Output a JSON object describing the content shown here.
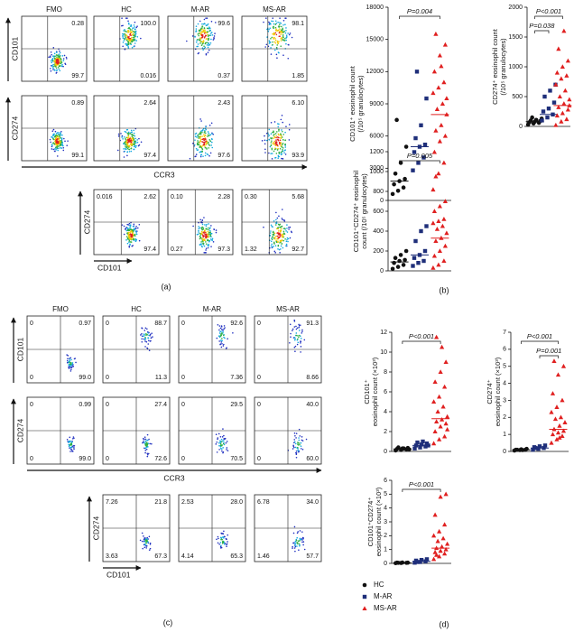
{
  "panel_a": {
    "label": "(a)",
    "columns": [
      "FMO",
      "HC",
      "M-AR",
      "MS-AR"
    ],
    "rows": [
      {
        "y_label": "CD101",
        "plots": [
          {
            "UR": "0.28",
            "LR": "99.7"
          },
          {
            "UR": "100.0",
            "LR": "0.016"
          },
          {
            "UR": "99.6",
            "LR": "0.37"
          },
          {
            "UR": "98.1",
            "LR": "1.85"
          }
        ]
      },
      {
        "y_label": "CD274",
        "plots": [
          {
            "UR": "0.89",
            "LR": "99.1"
          },
          {
            "UR": "2.64",
            "LR": "97.4"
          },
          {
            "UR": "2.43",
            "LR": "97.6"
          },
          {
            "UR": "6.10",
            "LR": "93.9"
          }
        ]
      }
    ],
    "x_label": "CCR3",
    "gate_row": {
      "y_label": "CD274",
      "x_label": "CD101",
      "plots": [
        {
          "UL": "0.016",
          "UR": "2.62",
          "LR": "97.4"
        },
        {
          "UL": "0.10",
          "UR": "2.28",
          "LL": "0.27",
          "LR": "97.3"
        },
        {
          "UL": "0.30",
          "UR": "5.68",
          "LL": "1.32",
          "LR": "92.7"
        }
      ]
    }
  },
  "panel_b": {
    "label": "(b)",
    "charts": [
      {
        "type": "scatter",
        "ylabel": [
          "CD101⁺ eosinophil count",
          "(/10⁵ granulocytes)"
        ],
        "ylim": [
          0,
          18000
        ],
        "yticks": [
          0,
          3000,
          6000,
          9000,
          12000,
          15000,
          18000
        ],
        "series": [
          {
            "values": [
              600,
              900,
              1200,
              1500,
              1800,
              2000,
              2500,
              3500,
              5000,
              7500
            ],
            "median": 1800
          },
          {
            "values": [
              2800,
              3500,
              4000,
              4500,
              5000,
              5200,
              5800,
              7000,
              9500,
              12000
            ],
            "median": 5000
          },
          {
            "values": [
              1000,
              2500,
              3500,
              4500,
              5500,
              6000,
              6500,
              7000,
              8000,
              8500,
              9000,
              10000,
              10500,
              11000,
              12000,
              13500,
              14500,
              15500,
              12500,
              9500
            ],
            "median": 8000
          }
        ],
        "comparisons": [
          {
            "label": "P=0.004",
            "between": [
              "HC",
              "MS-AR"
            ]
          }
        ]
      },
      {
        "type": "scatter",
        "ylabel": [
          "CD274⁺ eosinophil count",
          "(/10⁵ granulocytes)"
        ],
        "ylim": [
          0,
          2000
        ],
        "yticks": [
          0,
          500,
          1000,
          1500,
          2000
        ],
        "series": [
          {
            "values": [
              30,
              50,
              60,
              70,
              80,
              90,
              100,
              110,
              130,
              150
            ],
            "median": 80
          },
          {
            "values": [
              100,
              150,
              200,
              250,
              300,
              400,
              500,
              600,
              700
            ],
            "median": 200
          },
          {
            "values": [
              20,
              80,
              120,
              180,
              220,
              280,
              320,
              380,
              450,
              500,
              600,
              700,
              800,
              850,
              900,
              1000,
              1100,
              1300,
              1600,
              350
            ],
            "median": 350
          }
        ],
        "comparisons": [
          {
            "label": "P<0.001",
            "between": [
              "HC",
              "MS-AR"
            ]
          },
          {
            "label": "P=0.038",
            "between": [
              "HC",
              "M-AR"
            ]
          }
        ]
      },
      {
        "type": "scatter",
        "ylabel": [
          "CD101⁺CD274⁺ eosinophil",
          "count (/10⁵ granulocytes)"
        ],
        "ylim": [
          0,
          1200
        ],
        "yticks": [
          0,
          200,
          400,
          600,
          800,
          1000,
          1200
        ],
        "series": [
          {
            "values": [
              20,
              40,
              60,
              80,
              100,
              110,
              130,
              160,
              200
            ],
            "median": 90
          },
          {
            "values": [
              50,
              80,
              100,
              130,
              160,
              200,
              300,
              400,
              450
            ],
            "median": 160
          },
          {
            "values": [
              30,
              60,
              100,
              150,
              200,
              250,
              300,
              330,
              380,
              420,
              450,
              480,
              500,
              520,
              600,
              650,
              700,
              950
            ],
            "median": 330
          }
        ],
        "comparisons": [
          {
            "label": "P=0.005",
            "between": [
              "HC",
              "MS-AR"
            ]
          }
        ]
      }
    ]
  },
  "panel_c": {
    "label": "(c)",
    "columns": [
      "FMO",
      "HC",
      "M-AR",
      "MS-AR"
    ],
    "rows": [
      {
        "y_label": "CD101",
        "plots": [
          {
            "UL": "0",
            "UR": "0.97",
            "LL": "0",
            "LR": "99.0"
          },
          {
            "UL": "0",
            "UR": "88.7",
            "LL": "0",
            "LR": "11.3"
          },
          {
            "UL": "0",
            "UR": "92.6",
            "LL": "0",
            "LR": "7.36"
          },
          {
            "UL": "0",
            "UR": "91.3",
            "LL": "0",
            "LR": "8.66"
          }
        ]
      },
      {
        "y_label": "CD274",
        "plots": [
          {
            "UL": "0",
            "UR": "0.99",
            "LL": "0",
            "LR": "99.0"
          },
          {
            "UL": "0",
            "UR": "27.4",
            "LL": "0",
            "LR": "72.6"
          },
          {
            "UL": "0",
            "UR": "29.5",
            "LL": "0",
            "LR": "70.5"
          },
          {
            "UL": "0",
            "UR": "40.0",
            "LL": "0",
            "LR": "60.0"
          }
        ]
      }
    ],
    "x_label": "CCR3",
    "gate_row": {
      "y_label": "CD274",
      "x_label": "CD101",
      "plots": [
        {
          "UL": "7.26",
          "UR": "21.8",
          "LL": "3.63",
          "LR": "67.3"
        },
        {
          "UL": "2.53",
          "UR": "28.0",
          "LL": "4.14",
          "LR": "65.3"
        },
        {
          "UL": "6.78",
          "UR": "34.0",
          "LL": "1.46",
          "LR": "57.7"
        }
      ]
    }
  },
  "panel_d": {
    "label": "(d)",
    "legend": [
      {
        "name": "HC",
        "color": "#111111",
        "marker": "circle"
      },
      {
        "name": "M-AR",
        "color": "#1f2f7a",
        "marker": "square"
      },
      {
        "name": "MS-AR",
        "color": "#e02020",
        "marker": "triangle"
      }
    ],
    "charts": [
      {
        "type": "scatter",
        "ylabel": [
          "CD101⁺",
          "eosinophil count (×10³)"
        ],
        "ylim": [
          0,
          12
        ],
        "yticks": [
          0,
          2,
          4,
          6,
          8,
          10,
          12
        ],
        "series": [
          {
            "values": [
              0.1,
              0.15,
              0.2,
              0.25,
              0.3,
              0.35,
              0.4,
              0.3,
              0.2
            ],
            "median": 0.25
          },
          {
            "values": [
              0.3,
              0.4,
              0.5,
              0.6,
              0.7,
              0.8,
              0.9,
              1.0,
              0.6
            ],
            "median": 0.6
          },
          {
            "values": [
              0.8,
              1.2,
              1.5,
              2.0,
              2.5,
              2.8,
              3.0,
              3.2,
              3.5,
              4.0,
              4.5,
              5.0,
              5.5,
              6.5,
              7.0,
              8.0,
              9.0,
              11.5,
              10.5,
              2.2
            ],
            "median": 3.3
          }
        ],
        "comparisons": [
          {
            "label": "P<0.001",
            "between": [
              "HC",
              "MS-AR"
            ]
          }
        ]
      },
      {
        "type": "scatter",
        "ylabel": [
          "CD274⁺",
          "eosinophil count (×10³)"
        ],
        "ylim": [
          0,
          7
        ],
        "yticks": [
          0,
          1,
          2,
          3,
          4,
          5,
          6,
          7
        ],
        "series": [
          {
            "values": [
              0.05,
              0.08,
              0.1,
              0.1,
              0.12,
              0.15,
              0.1,
              0.08
            ],
            "median": 0.1
          },
          {
            "values": [
              0.1,
              0.15,
              0.2,
              0.25,
              0.3,
              0.35,
              0.2
            ],
            "median": 0.2
          },
          {
            "values": [
              0.5,
              0.7,
              0.9,
              1.0,
              1.1,
              1.2,
              1.3,
              1.5,
              1.7,
              1.9,
              2.0,
              2.3,
              2.6,
              3.0,
              3.4,
              4.5,
              5.0,
              5.3,
              0.8
            ],
            "median": 1.3
          }
        ],
        "comparisons": [
          {
            "label": "P<0.001",
            "between": [
              "HC",
              "MS-AR"
            ]
          },
          {
            "label": "P=0.001",
            "between": [
              "M-AR",
              "MS-AR"
            ]
          }
        ]
      },
      {
        "type": "scatter",
        "ylabel": [
          "CD101⁺CD274⁺",
          "eosinophil count (×10³)"
        ],
        "ylim": [
          0,
          6
        ],
        "yticks": [
          0,
          1,
          2,
          3,
          4,
          5,
          6
        ],
        "series": [
          {
            "values": [
              0.02,
              0.03,
              0.04,
              0.05,
              0.06,
              0.05,
              0.04
            ],
            "median": 0.04
          },
          {
            "values": [
              0.05,
              0.1,
              0.15,
              0.2,
              0.25,
              0.3,
              0.1
            ],
            "median": 0.15
          },
          {
            "values": [
              0.3,
              0.5,
              0.7,
              0.8,
              0.9,
              1.0,
              1.1,
              1.2,
              1.4,
              1.6,
              1.8,
              2.0,
              2.3,
              2.8,
              3.5,
              4.8,
              5.0,
              0.6
            ],
            "median": 1.1
          }
        ],
        "comparisons": [
          {
            "label": "P<0.001",
            "between": [
              "HC",
              "MS-AR"
            ]
          }
        ]
      }
    ]
  }
}
